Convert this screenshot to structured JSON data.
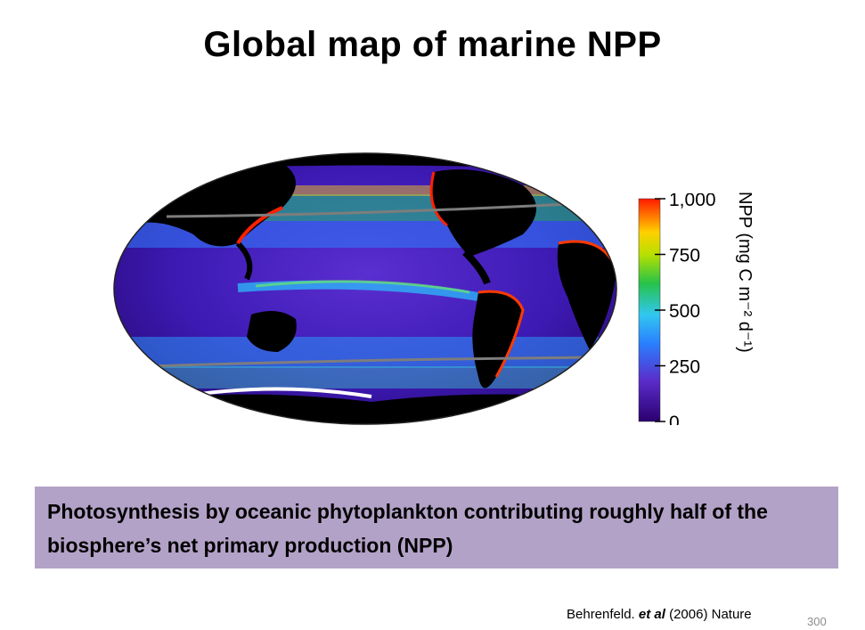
{
  "slide": {
    "title": "Global map of marine NPP",
    "caption": "Photosynthesis by oceanic phytoplankton contributing roughly half of the biosphere’s net primary production (NPP)",
    "citation_author": "Behrenfeld.",
    "citation_etal": "et al",
    "citation_rest": "(2006) Nature",
    "page_number": "300"
  },
  "colorbar": {
    "label": "NPP (mg C m⁻² d⁻¹)",
    "ticks": [
      {
        "value": 1000,
        "label": "1,000"
      },
      {
        "value": 750,
        "label": "750"
      },
      {
        "value": 500,
        "label": "500"
      },
      {
        "value": 250,
        "label": "250"
      },
      {
        "value": 0,
        "label": "0"
      }
    ],
    "range": [
      0,
      1000
    ]
  },
  "colors": {
    "ocean_low": "#3a0a8c",
    "ocean_mid": "#1e90ff",
    "ocean_high": "#ff2000",
    "land": "#000000",
    "caption_bg": "#b3a2c7"
  }
}
